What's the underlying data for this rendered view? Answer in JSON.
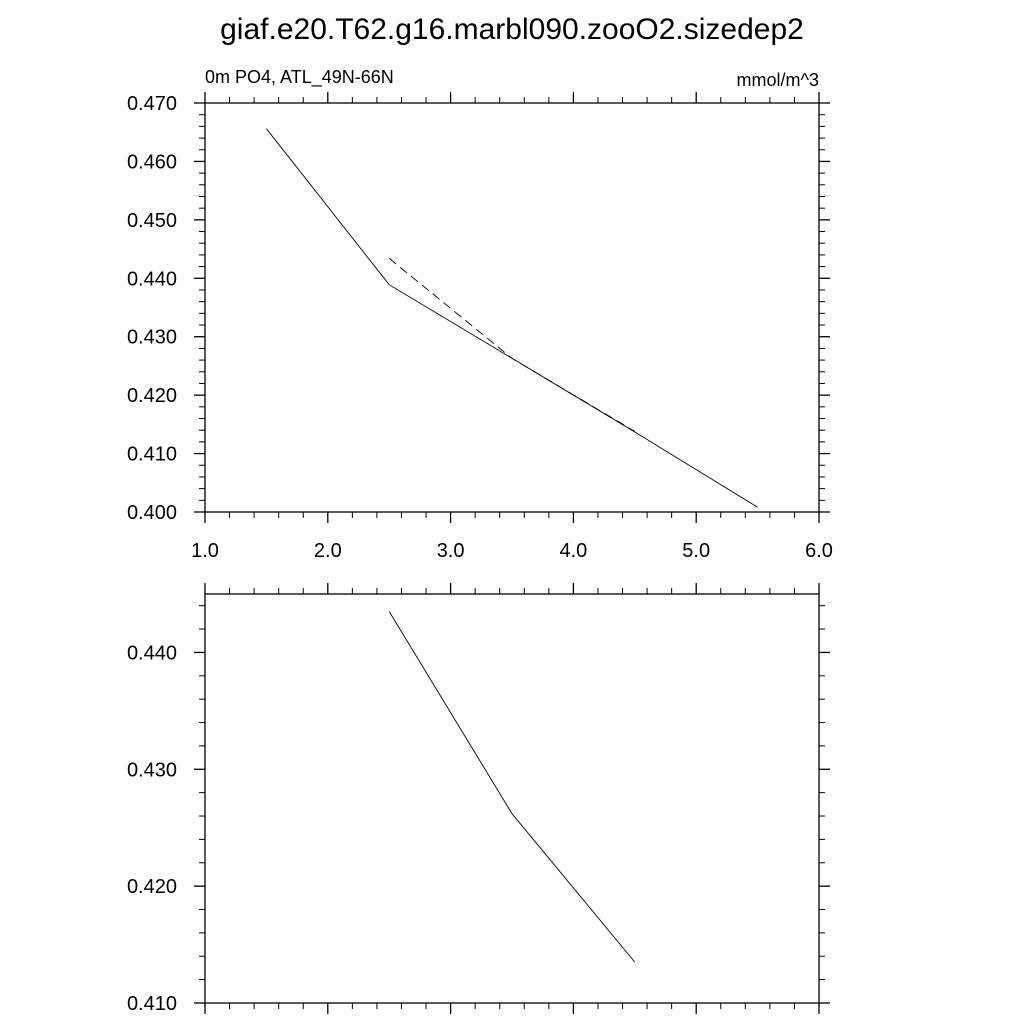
{
  "title": "giaf.e20.T62.g16.marbl090.zooO2.sizedep2",
  "chart_data": [
    {
      "type": "line",
      "left_label": "0m PO4, ATL_49N-66N",
      "right_label": "mmol/m^3",
      "xlim": [
        1.0,
        6.0
      ],
      "ylim": [
        0.4,
        0.47
      ],
      "x_ticks": [
        1.0,
        2.0,
        3.0,
        4.0,
        5.0,
        6.0
      ],
      "x_tick_labels": [
        "1.0",
        "2.0",
        "3.0",
        "4.0",
        "5.0",
        "6.0"
      ],
      "y_ticks": [
        0.4,
        0.41,
        0.42,
        0.43,
        0.44,
        0.45,
        0.46,
        0.47
      ],
      "y_tick_labels": [
        "0.400",
        "0.410",
        "0.420",
        "0.430",
        "0.440",
        "0.450",
        "0.460",
        "0.470"
      ],
      "series": [
        {
          "style": "solid",
          "x": [
            1.5,
            2.5,
            3.5,
            4.5,
            5.5
          ],
          "y": [
            0.4656,
            0.4389,
            0.4263,
            0.4137,
            0.4008
          ]
        },
        {
          "style": "dashed",
          "x": [
            2.5,
            3.5,
            4.5
          ],
          "y": [
            0.4434,
            0.4263,
            0.4138
          ]
        }
      ]
    },
    {
      "type": "line",
      "xlim": [
        1.0,
        6.0
      ],
      "ylim": [
        0.41,
        0.445
      ],
      "x_ticks": [
        1.0,
        2.0,
        3.0,
        4.0,
        5.0,
        6.0
      ],
      "y_ticks": [
        0.41,
        0.42,
        0.43,
        0.44
      ],
      "y_tick_labels": [
        "0.410",
        "0.420",
        "0.430",
        "0.440"
      ],
      "series": [
        {
          "style": "solid",
          "x": [
            2.5,
            3.5,
            4.5
          ],
          "y": [
            0.4435,
            0.4262,
            0.4135
          ]
        }
      ]
    }
  ]
}
